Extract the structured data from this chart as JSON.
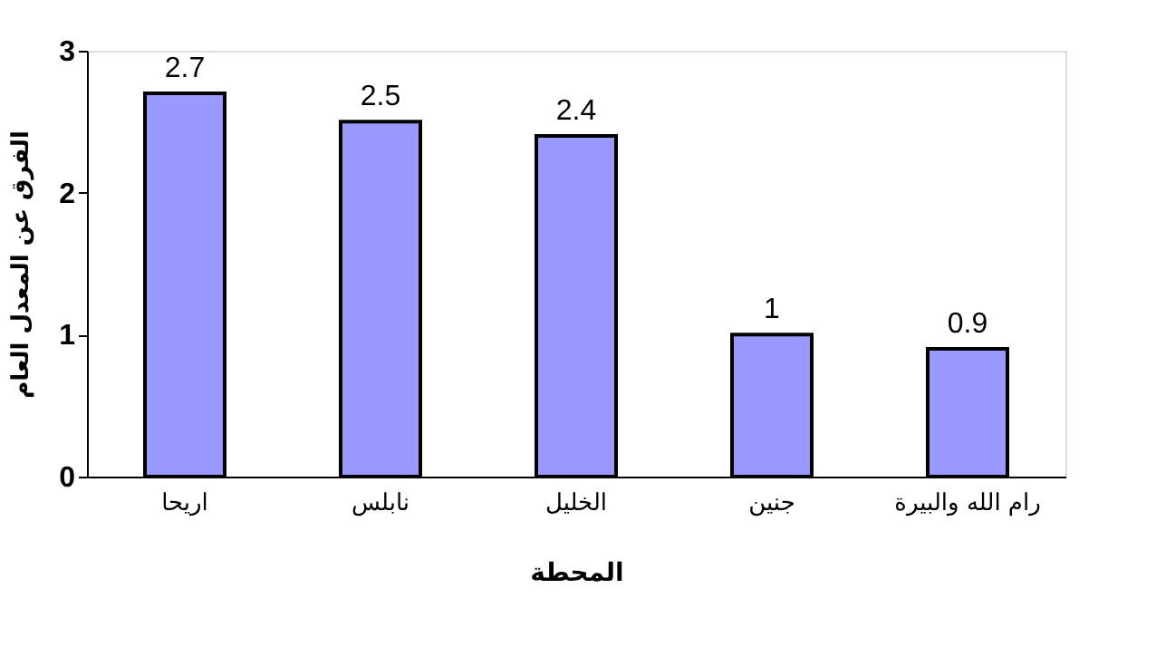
{
  "chart_data": {
    "type": "bar",
    "xlabel": "المحطة",
    "ylabel": "الفرق عن المعدل العام",
    "categories": [
      "اريحا",
      "نابلس",
      "الخليل",
      "جنين",
      "رام الله والبيرة"
    ],
    "values": [
      2.7,
      2.5,
      2.4,
      1,
      0.9
    ],
    "color": "#9999ff",
    "ylim": [
      0,
      3
    ],
    "yticks": [
      0,
      1,
      2,
      3
    ],
    "grid": false,
    "data_labels": true
  }
}
